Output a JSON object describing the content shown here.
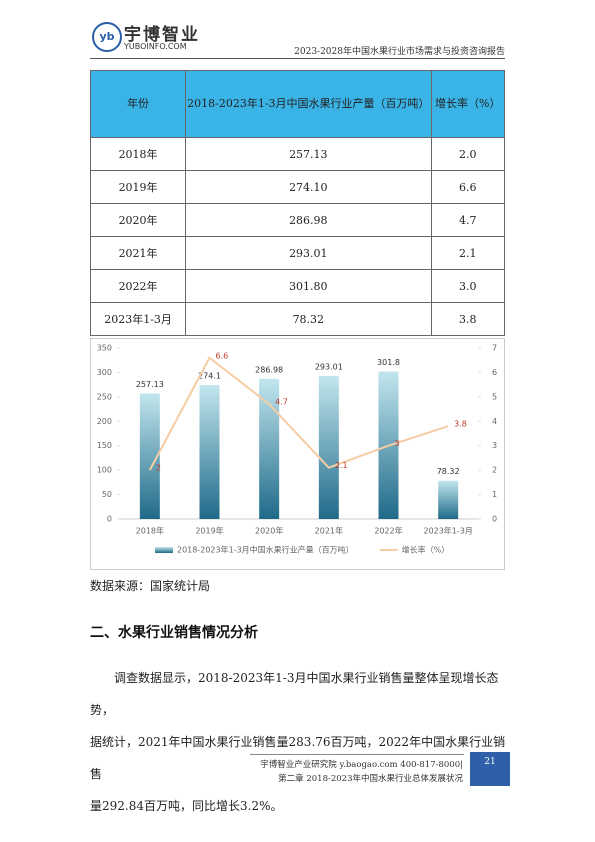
{
  "header": {
    "logo_name": "宇博智业",
    "logo_site": "YUBOINFO.COM",
    "report_title": "2023-2028年中国水果行业市场需求与投资咨询报告"
  },
  "table": {
    "columns": [
      "年份",
      "2018-2023年1-3月中国水果行业产量（百万吨）",
      "增长率（%）"
    ],
    "rows": [
      [
        "2018年",
        "257.13",
        "2.0"
      ],
      [
        "2019年",
        "274.10",
        "6.6"
      ],
      [
        "2020年",
        "286.98",
        "4.7"
      ],
      [
        "2021年",
        "293.01",
        "2.1"
      ],
      [
        "2022年",
        "301.80",
        "3.0"
      ],
      [
        "2023年1-3月",
        "78.32",
        "3.8"
      ]
    ]
  },
  "chart_data": {
    "type": "bar-line",
    "categories": [
      "2018年",
      "2019年",
      "2020年",
      "2021年",
      "2022年",
      "2023年1-3月"
    ],
    "series": [
      {
        "name": "2018-2023年1-3月中国水果行业产量（百万吨）",
        "type": "bar",
        "color": "#2a7f9e",
        "values": [
          257.13,
          274.1,
          286.98,
          293.01,
          301.8,
          78.32
        ]
      },
      {
        "name": "增长率（%）",
        "type": "line",
        "axis": "y2",
        "color": "#f6cca3",
        "values": [
          2,
          6.6,
          4.7,
          2.1,
          3,
          3.8
        ]
      }
    ],
    "ylim": [
      0,
      350
    ],
    "yticks": [
      0,
      50,
      100,
      150,
      200,
      250,
      300,
      350
    ],
    "y2lim": [
      0,
      7
    ],
    "y2ticks": [
      0,
      1,
      2,
      3,
      4,
      5,
      6,
      7
    ]
  },
  "source": "数据来源：国家统计局",
  "section": "二、水果行业销售情况分析",
  "paragraph": [
    "调查数据显示，2018-2023年1-3月中国水果行业销售量整体呈现增长态势，",
    "据统计，2021年中国水果行业销售量283.76百万吨，2022年中国水果行业销售",
    "量292.84百万吨，同比增长3.2%。"
  ],
  "footer": {
    "line1": "宇博智业产业研究院  y.baogao.com    400-817-8000|",
    "line2": "第二章  2018-2023年中国水果行业总体发展状况",
    "page": "21"
  }
}
